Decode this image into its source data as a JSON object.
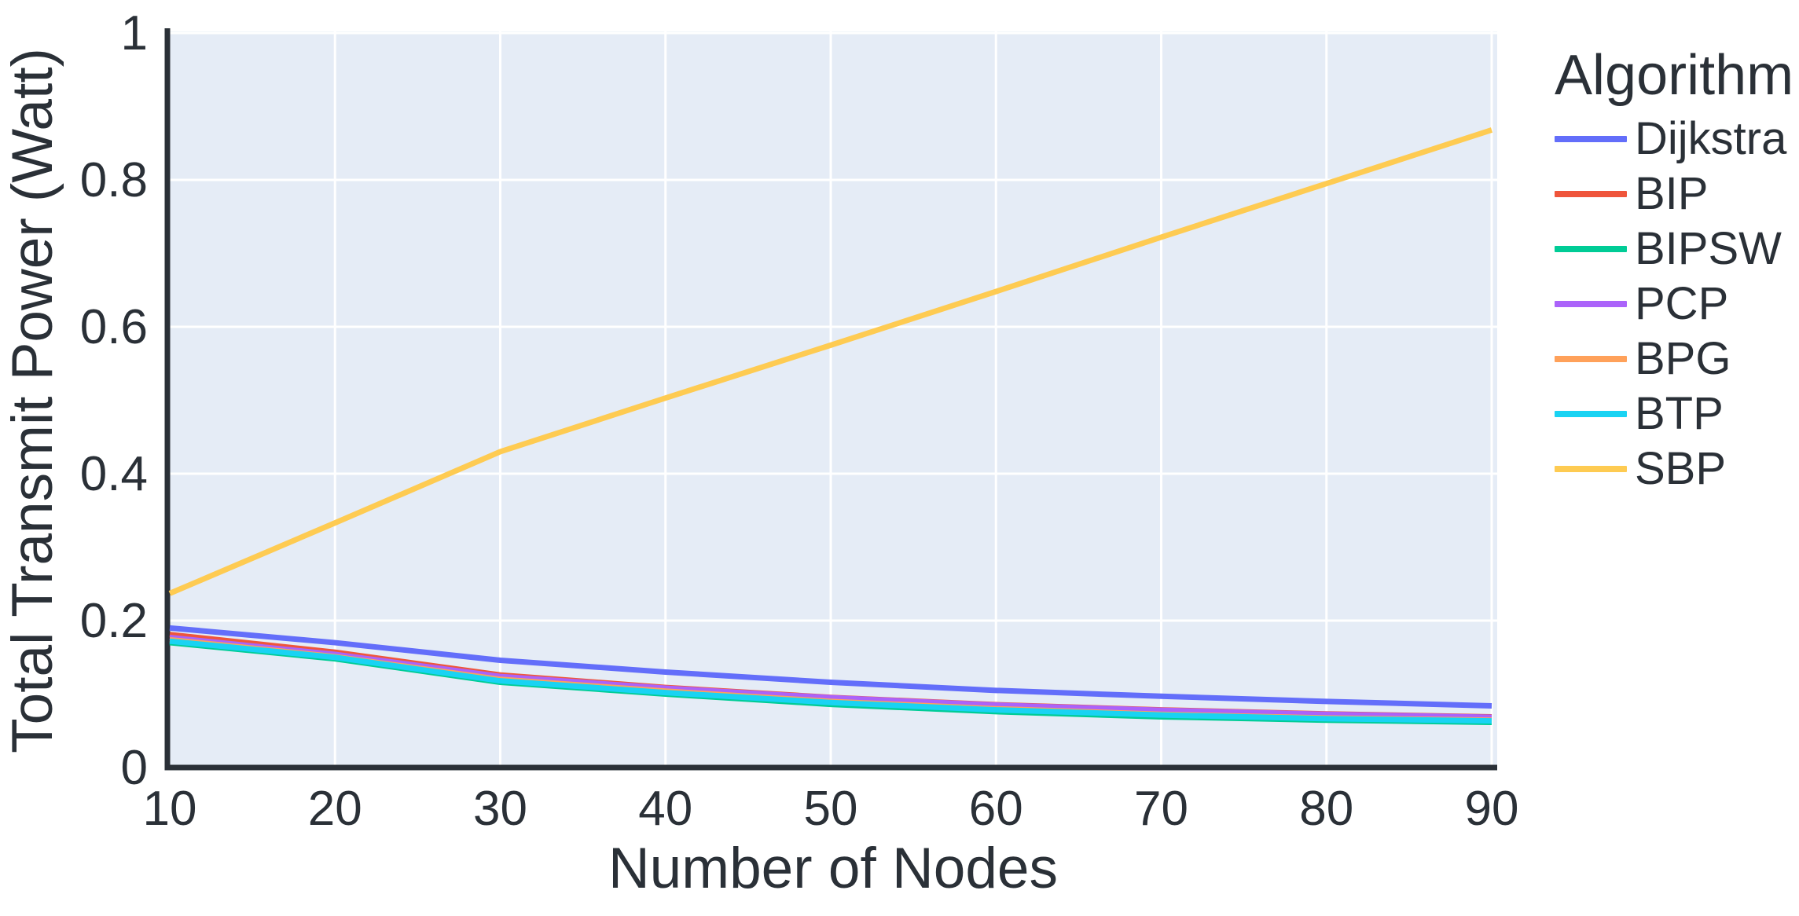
{
  "chart_data": {
    "type": "line",
    "title": "",
    "xlabel": "Number of Nodes",
    "ylabel": "Total Transmit Power (Watt)",
    "legend_title": "Algorithm",
    "legend_position": "right",
    "grid": true,
    "plot_bg": "#E5ECF6",
    "grid_color": "#FFFFFF",
    "axis_color": "#2A3037",
    "text_color": "#2A3037",
    "xlim": [
      10,
      90.33
    ],
    "ylim": [
      0,
      1
    ],
    "x": [
      10,
      20,
      30,
      40,
      50,
      60,
      70,
      80,
      90
    ],
    "x_ticks": [
      "10",
      "20",
      "30",
      "40",
      "50",
      "60",
      "70",
      "80",
      "90"
    ],
    "x_tick_values": [
      10,
      20,
      30,
      40,
      50,
      60,
      70,
      80,
      90
    ],
    "y_ticks": [
      "0",
      "0.2",
      "0.4",
      "0.6",
      "0.8",
      "1"
    ],
    "y_tick_values": [
      0,
      0.2,
      0.4,
      0.6,
      0.8,
      1
    ],
    "series": [
      {
        "name": "Dijkstra",
        "color": "#636EFA",
        "values": [
          0.19,
          0.17,
          0.146,
          0.13,
          0.116,
          0.105,
          0.097,
          0.09,
          0.084
        ]
      },
      {
        "name": "BIP",
        "color": "#EF553B",
        "values": [
          0.181,
          0.157,
          0.126,
          0.109,
          0.0955,
          0.0855,
          0.0785,
          0.073,
          0.069
        ]
      },
      {
        "name": "BIPSW",
        "color": "#00CC96",
        "values": [
          0.17,
          0.148,
          0.116,
          0.1,
          0.086,
          0.076,
          0.069,
          0.0645,
          0.0615
        ]
      },
      {
        "name": "PCP",
        "color": "#AB63FA",
        "values": [
          0.177,
          0.154,
          0.124,
          0.108,
          0.095,
          0.085,
          0.078,
          0.0725,
          0.0685
        ]
      },
      {
        "name": "BPG",
        "color": "#FFA15A",
        "values": [
          0.174,
          0.151,
          0.12,
          0.104,
          0.09,
          0.08,
          0.0725,
          0.0675,
          0.0645
        ]
      },
      {
        "name": "BTP",
        "color": "#19D3F3",
        "values": [
          0.172,
          0.15,
          0.118,
          0.102,
          0.0885,
          0.0785,
          0.0715,
          0.0665,
          0.0635
        ]
      },
      {
        "name": "SBP",
        "color": "#FECB52",
        "values": [
          0.237,
          0.333,
          0.43,
          0.503,
          0.575,
          0.648,
          0.722,
          0.795,
          0.868
        ]
      }
    ]
  }
}
